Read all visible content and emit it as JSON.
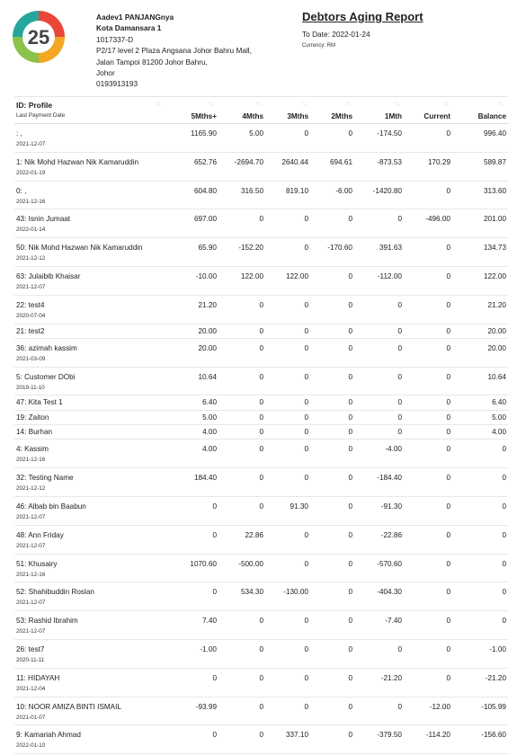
{
  "logo": {
    "number": "25",
    "colors": [
      "#e8463a",
      "#f5a623",
      "#8bc34a",
      "#26a69a"
    ]
  },
  "company": {
    "name": "Aadev1 PANJANGnya",
    "branch": "Kota Damansara 1",
    "reg_no": "1017337-D",
    "address_lines": [
      "P2/17 level 2 Plaza Angsana Johor Bahru Mall,",
      "Jalan Tampoi 81200 Johor Bahru,",
      "Johor"
    ],
    "phone": "0193913193"
  },
  "report": {
    "title": "Debtors Aging Report",
    "to_date": "To Date: 2022-01-24",
    "currency": "Currency: RM"
  },
  "columns": {
    "profile": "ID: Profile",
    "last_payment": "Last Payment Date",
    "values": [
      "5Mths+",
      "4Mths",
      "3Mths",
      "2Mths",
      "1Mth",
      "Current",
      "Balance"
    ],
    "sort_icon": "↑↓"
  },
  "rows": [
    {
      "name": ": ,",
      "date": "2021-12-07",
      "values": [
        "1165.90",
        "5.00",
        "0",
        "0",
        "-174.50",
        "0",
        "996.40"
      ]
    },
    {
      "name": "1: Nik Mohd Hazwan Nik Kamaruddin",
      "date": "2022-01-19",
      "values": [
        "652.76",
        "-2694.70",
        "2640.44",
        "694.61",
        "-873.53",
        "170.29",
        "589.87"
      ]
    },
    {
      "name": "0: ,",
      "date": "2021-12-16",
      "values": [
        "604.80",
        "316.50",
        "819.10",
        "-6.00",
        "-1420.80",
        "0",
        "313.60"
      ]
    },
    {
      "name": "43: Isnin Jumaat",
      "date": "2022-01-14",
      "values": [
        "697.00",
        "0",
        "0",
        "0",
        "0",
        "-496.00",
        "201.00"
      ]
    },
    {
      "name": "50: Nik Mohd Hazwan Nik Kamaruddin",
      "date": "2021-12-12",
      "values": [
        "65.90",
        "-152.20",
        "0",
        "-170.60",
        "391.63",
        "0",
        "134.73"
      ]
    },
    {
      "name": "63: Julaibib Khaisar",
      "date": "2021-12-07",
      "values": [
        "-10.00",
        "122.00",
        "122.00",
        "0",
        "-112.00",
        "0",
        "122.00"
      ]
    },
    {
      "name": "22: test4",
      "date": "2020-07-04",
      "values": [
        "21.20",
        "0",
        "0",
        "0",
        "0",
        "0",
        "21.20"
      ]
    },
    {
      "name": "21: test2",
      "date": "",
      "values": [
        "20.00",
        "0",
        "0",
        "0",
        "0",
        "0",
        "20.00"
      ]
    },
    {
      "name": "36: azimah kassim",
      "date": "2021-03-09",
      "values": [
        "20.00",
        "0",
        "0",
        "0",
        "0",
        "0",
        "20.00"
      ]
    },
    {
      "name": "5: Customer DObi",
      "date": "2019-11-10",
      "values": [
        "10.64",
        "0",
        "0",
        "0",
        "0",
        "0",
        "10.64"
      ]
    },
    {
      "name": "47: Kita Test 1",
      "date": "",
      "values": [
        "6.40",
        "0",
        "0",
        "0",
        "0",
        "0",
        "6.40"
      ]
    },
    {
      "name": "19: Zaiton",
      "date": "",
      "values": [
        "5.00",
        "0",
        "0",
        "0",
        "0",
        "0",
        "5.00"
      ]
    },
    {
      "name": "14: Burhan",
      "date": "",
      "values": [
        "4.00",
        "0",
        "0",
        "0",
        "0",
        "0",
        "4.00"
      ]
    },
    {
      "name": "4: Kassim",
      "date": "2021-12-16",
      "values": [
        "4.00",
        "0",
        "0",
        "0",
        "-4.00",
        "0",
        "0"
      ]
    },
    {
      "name": "32: Testing Name",
      "date": "2021-12-12",
      "values": [
        "184.40",
        "0",
        "0",
        "0",
        "-184.40",
        "0",
        "0"
      ]
    },
    {
      "name": "46: Albab bin Baabun",
      "date": "2021-12-07",
      "values": [
        "0",
        "0",
        "91.30",
        "0",
        "-91.30",
        "0",
        "0"
      ]
    },
    {
      "name": "48: Ann Friday",
      "date": "2021-12-07",
      "values": [
        "0",
        "22.86",
        "0",
        "0",
        "-22.86",
        "0",
        "0"
      ]
    },
    {
      "name": "51: Khusairy",
      "date": "2021-12-16",
      "values": [
        "1070.60",
        "-500.00",
        "0",
        "0",
        "-570.60",
        "0",
        "0"
      ]
    },
    {
      "name": "52: Shahibuddin Roslan",
      "date": "2021-12-07",
      "values": [
        "0",
        "534.30",
        "-130.00",
        "0",
        "-404.30",
        "0",
        "0"
      ]
    },
    {
      "name": "53: Rashid Ibrahim",
      "date": "2021-12-07",
      "values": [
        "7.40",
        "0",
        "0",
        "0",
        "-7.40",
        "0",
        "0"
      ]
    },
    {
      "name": "26: test7",
      "date": "2020-11-11",
      "values": [
        "-1.00",
        "0",
        "0",
        "0",
        "0",
        "0",
        "-1.00"
      ]
    },
    {
      "name": "11: HIDAYAH",
      "date": "2021-12-04",
      "values": [
        "0",
        "0",
        "0",
        "0",
        "-21.20",
        "0",
        "-21.20"
      ]
    },
    {
      "name": "10: NOOR AMIZA BINTI ISMAIL",
      "date": "2021-01-07",
      "values": [
        "-93.99",
        "0",
        "0",
        "0",
        "0",
        "-12.00",
        "-105.99"
      ]
    },
    {
      "name": "9: Kamariah Ahmad",
      "date": "2022-01-10",
      "values": [
        "0",
        "0",
        "337.10",
        "0",
        "-379.50",
        "-114.20",
        "-156.60"
      ]
    }
  ]
}
